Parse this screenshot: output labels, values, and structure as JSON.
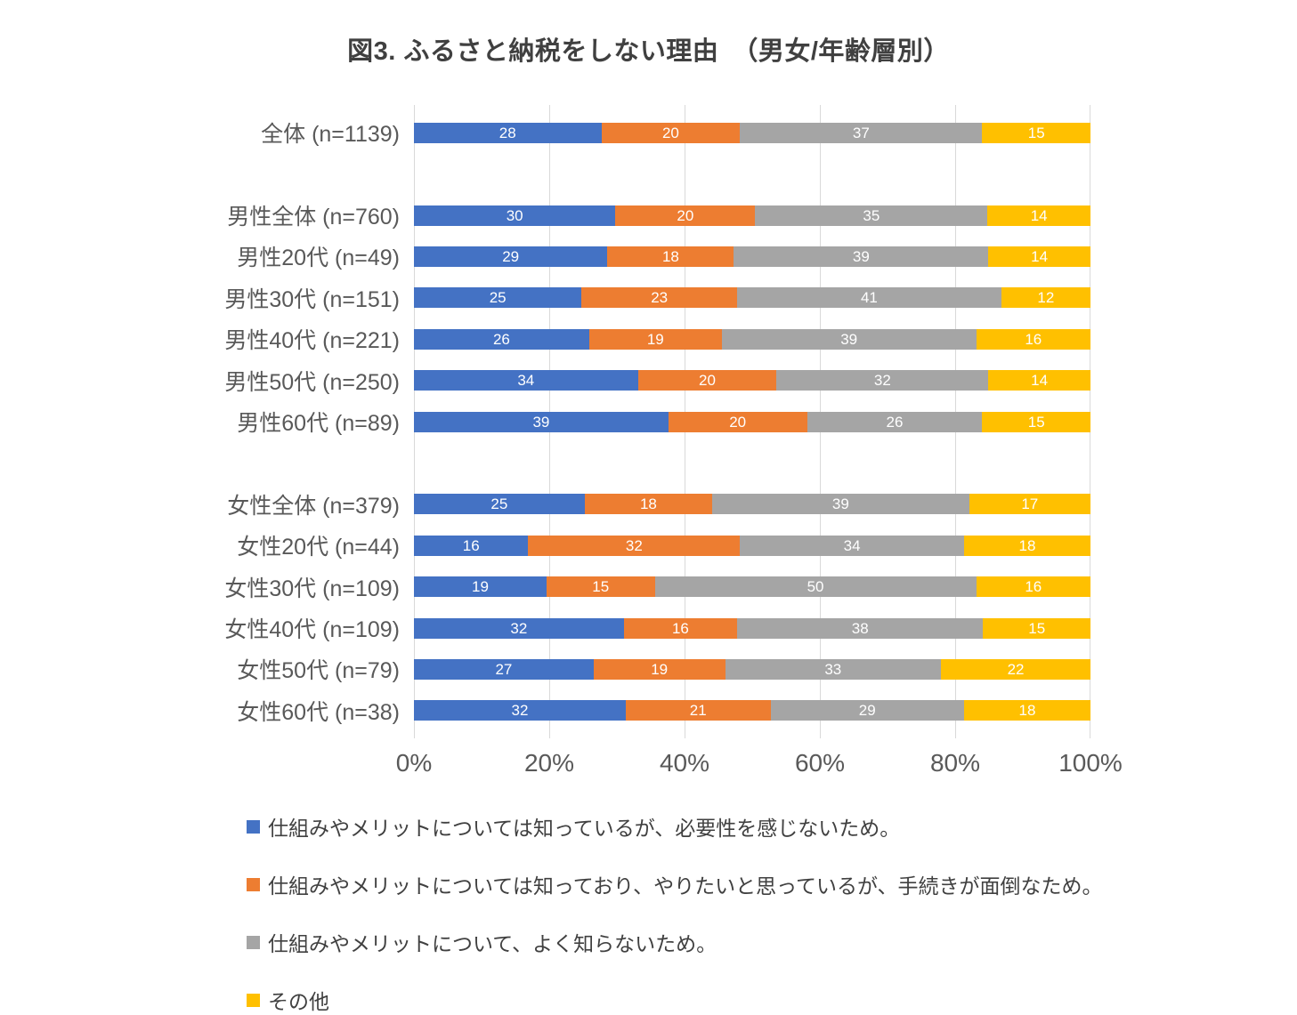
{
  "chart_data": {
    "type": "bar",
    "subtype": "stacked-100-horizontal",
    "title": "図3. ふるさと納税をしない理由　（男女/年齢層別）",
    "categories": [
      "全体 (n=1139)",
      "男性全体 (n=760)",
      "男性20代 (n=49)",
      "男性30代 (n=151)",
      "男性40代 (n=221)",
      "男性50代 (n=250)",
      "男性60代 (n=89)",
      "女性全体 (n=379)",
      "女性20代 (n=44)",
      "女性30代 (n=109)",
      "女性40代 (n=109)",
      "女性50代 (n=79)",
      "女性60代 (n=38)"
    ],
    "group_breaks_after": [
      0,
      6
    ],
    "series": [
      {
        "name": "仕組みやメリットについては知っているが、必要性を感じないため。",
        "color": "#4472C4",
        "values": [
          28,
          30,
          29,
          25,
          26,
          34,
          39,
          25,
          16,
          19,
          32,
          27,
          32
        ]
      },
      {
        "name": "仕組みやメリットについては知っており、やりたいと思っているが、手続きが面倒なため。",
        "color": "#ED7D31",
        "values": [
          20,
          20,
          18,
          23,
          19,
          20,
          20,
          18,
          32,
          15,
          16,
          19,
          21
        ]
      },
      {
        "name": "仕組みやメリットについて、よく知らないため。",
        "color": "#A5A5A5",
        "values": [
          37,
          35,
          39,
          41,
          39,
          32,
          26,
          39,
          34,
          50,
          38,
          33,
          29
        ]
      },
      {
        "name": "その他",
        "color": "#FFC000",
        "values": [
          15,
          14,
          14,
          12,
          16,
          14,
          15,
          17,
          18,
          16,
          15,
          22,
          18
        ]
      }
    ],
    "x_axis": {
      "min": 0,
      "max": 100,
      "ticks": [
        "0%",
        "20%",
        "40%",
        "60%",
        "80%",
        "100%"
      ]
    },
    "gridlines": true,
    "gridline_color": "#D9D9D9",
    "data_label_color": "#FFFFFF",
    "legend_position": "bottom-left"
  }
}
